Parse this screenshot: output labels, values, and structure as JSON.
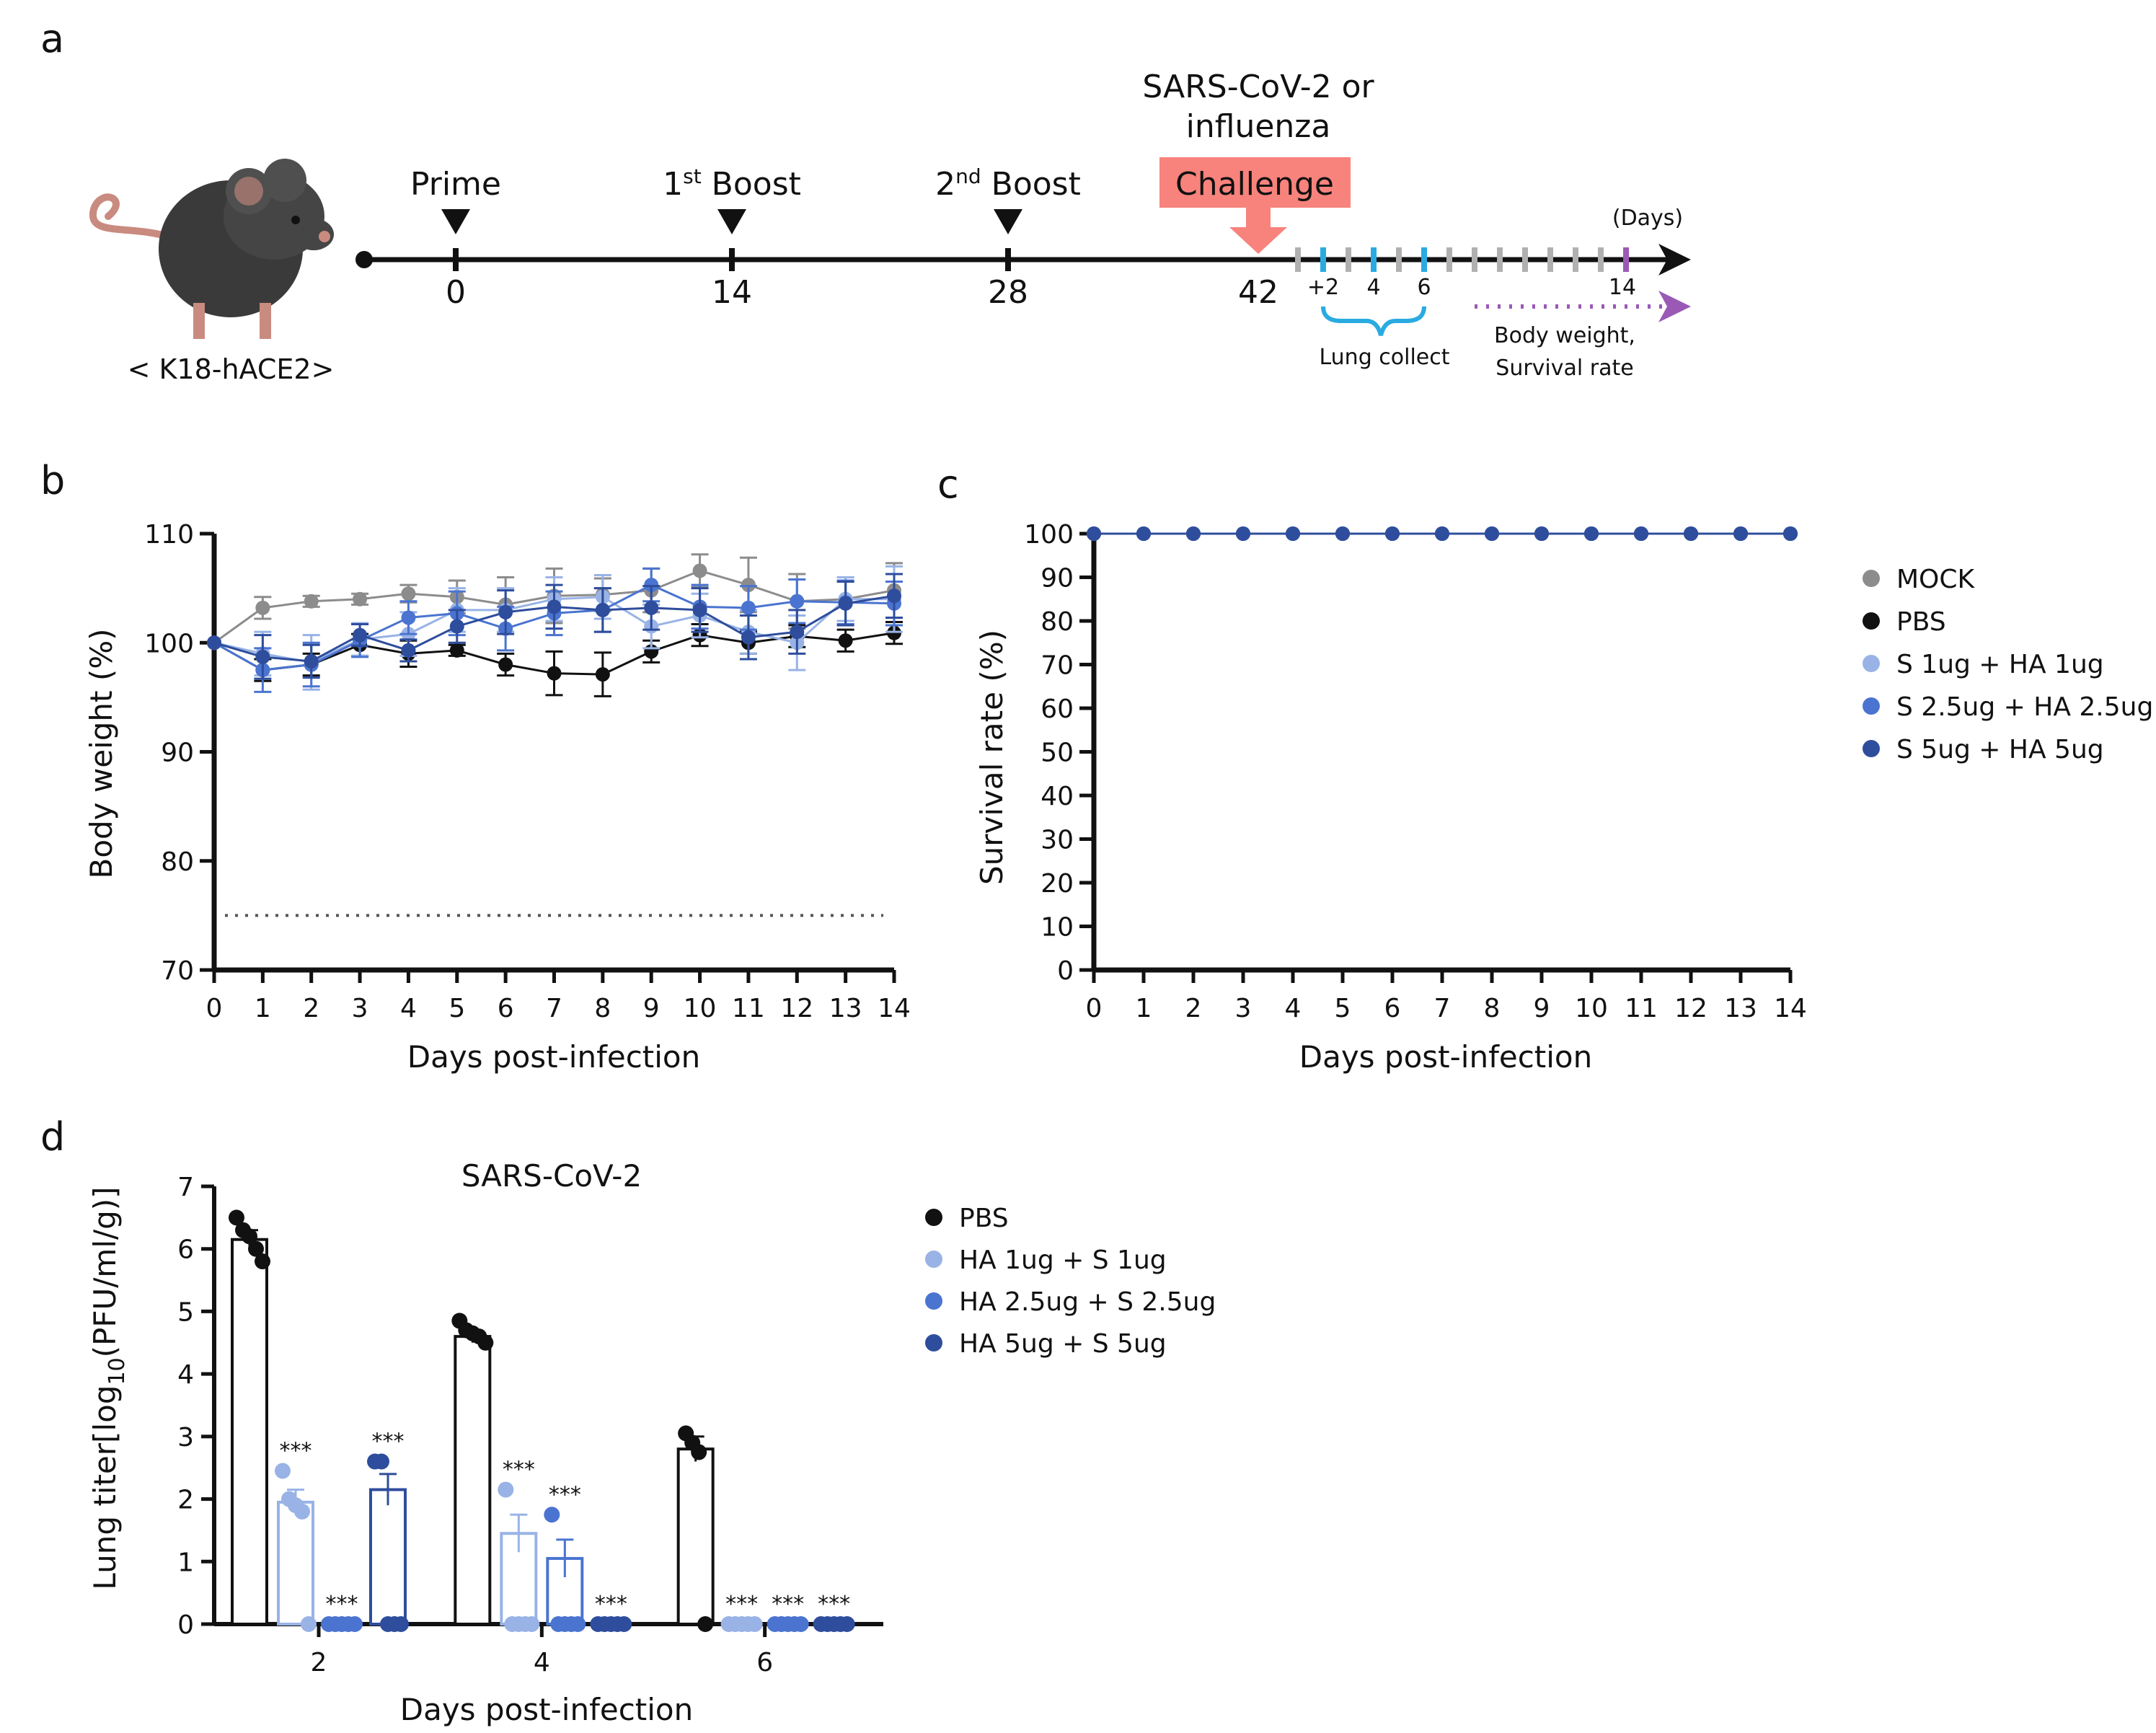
{
  "panels": {
    "a": "a",
    "b": "b",
    "c": "c",
    "d": "d"
  },
  "schematic": {
    "mouse_label": "< K18-hACE2>",
    "prime": "Prime",
    "boost1": {
      "num": "1",
      "sup": "st",
      "word": " Boost"
    },
    "boost2": {
      "num": "2",
      "sup": "nd",
      "word": " Boost"
    },
    "challenge_title_1": "SARS-CoV-2 or",
    "challenge_title_2": "influenza",
    "challenge": "Challenge",
    "days_unit": "(Days)",
    "timepoints": [
      "0",
      "14",
      "28",
      "42"
    ],
    "post_ticks": [
      "+2",
      "4",
      "6",
      "14"
    ],
    "lung_collect": "Lung collect",
    "body_weight": "Body weight,",
    "survival_rate": "Survival rate",
    "colors": {
      "challenge_bg": "#f7837c",
      "lung": "#29abe2",
      "followup": "#9b59b6"
    }
  },
  "colors": {
    "mock": "#8c8c8c",
    "pbs": "#111111",
    "s1": "#99b3e6",
    "s25": "#4a74d0",
    "s5": "#2e4d9c"
  },
  "chart_data": [
    {
      "id": "b",
      "type": "line",
      "title": "",
      "xlabel": "Days post-infection",
      "ylabel": "Body weight (%)",
      "x": [
        0,
        1,
        2,
        3,
        4,
        5,
        6,
        7,
        8,
        9,
        10,
        11,
        12,
        13,
        14
      ],
      "xlim": [
        0,
        14
      ],
      "ylim": [
        70,
        110
      ],
      "yticks": [
        70,
        80,
        90,
        100,
        110
      ],
      "reference_line": 75,
      "series": [
        {
          "name": "MOCK",
          "color_key": "mock",
          "values": [
            100,
            103.2,
            103.8,
            104,
            104.5,
            104.2,
            103.5,
            104.3,
            104.4,
            104.8,
            106.6,
            105.3,
            103.8,
            104,
            104.8
          ],
          "errors": [
            0,
            1,
            0.5,
            0.5,
            0.8,
            1.5,
            2.5,
            2.5,
            1.5,
            2,
            1.5,
            2.5,
            2.5,
            2,
            2.5
          ]
        },
        {
          "name": "PBS",
          "color_key": "pbs",
          "values": [
            100,
            97.5,
            98,
            99.8,
            99,
            99.3,
            98,
            97.2,
            97.1,
            99.2,
            100.7,
            100,
            100.6,
            100.2,
            100.9
          ],
          "errors": [
            0,
            1,
            1,
            1,
            1.2,
            0.5,
            1,
            2,
            2,
            1,
            1,
            1,
            1,
            1,
            1
          ]
        },
        {
          "name": "S 1ug + HA 1ug",
          "color_key": "s1",
          "values": [
            100,
            99,
            98.2,
            100.3,
            100.8,
            103,
            103,
            104,
            104.2,
            101.5,
            102.5,
            101,
            100,
            104,
            104
          ],
          "errors": [
            0,
            2,
            2.5,
            1.5,
            2,
            2,
            2,
            2,
            2,
            2,
            2,
            2,
            2.5,
            2,
            3
          ]
        },
        {
          "name": "S 2.5ug + HA 2.5ug",
          "color_key": "s25",
          "values": [
            100,
            97.5,
            98,
            100.2,
            102.3,
            102.7,
            101.3,
            102.7,
            103,
            105.3,
            103.3,
            103.2,
            103.8,
            103.7,
            103.6
          ],
          "errors": [
            0,
            2,
            2,
            1.5,
            1.5,
            2,
            2,
            2,
            2,
            1.5,
            2,
            2,
            2,
            2,
            2
          ]
        },
        {
          "name": "S 5ug + HA 5ug",
          "color_key": "s5",
          "values": [
            100,
            98.7,
            98.3,
            100.7,
            99.3,
            101.5,
            102.8,
            103.3,
            103,
            103.2,
            103,
            100.5,
            101,
            103.6,
            104.3
          ],
          "errors": [
            0,
            2,
            1.5,
            1,
            1,
            1.5,
            2,
            2,
            2,
            2,
            2,
            2,
            2,
            2,
            2
          ]
        }
      ]
    },
    {
      "id": "c",
      "type": "line",
      "title": "",
      "xlabel": "Days post-infection",
      "ylabel": "Survival rate (%)",
      "x": [
        0,
        1,
        2,
        3,
        4,
        5,
        6,
        7,
        8,
        9,
        10,
        11,
        12,
        13,
        14
      ],
      "xlim": [
        0,
        14
      ],
      "ylim": [
        0,
        100
      ],
      "yticks": [
        0,
        10,
        20,
        30,
        40,
        50,
        60,
        70,
        80,
        90,
        100
      ],
      "legend_position": "right",
      "series": [
        {
          "name": "MOCK",
          "color_key": "mock",
          "values": [
            100,
            100,
            100,
            100,
            100,
            100,
            100,
            100,
            100,
            100,
            100,
            100,
            100,
            100,
            100
          ]
        },
        {
          "name": "PBS",
          "color_key": "pbs",
          "values": [
            100,
            100,
            100,
            100,
            100,
            100,
            100,
            100,
            100,
            100,
            100,
            100,
            100,
            100,
            100
          ]
        },
        {
          "name": "S 1ug + HA 1ug",
          "color_key": "s1",
          "values": [
            100,
            100,
            100,
            100,
            100,
            100,
            100,
            100,
            100,
            100,
            100,
            100,
            100,
            100,
            100
          ]
        },
        {
          "name": "S 2.5ug + HA 2.5ug",
          "color_key": "s25",
          "values": [
            100,
            100,
            100,
            100,
            100,
            100,
            100,
            100,
            100,
            100,
            100,
            100,
            100,
            100,
            100
          ]
        },
        {
          "name": "S 5ug + HA 5ug",
          "color_key": "s5",
          "values": [
            100,
            100,
            100,
            100,
            100,
            100,
            100,
            100,
            100,
            100,
            100,
            100,
            100,
            100,
            100
          ]
        }
      ]
    },
    {
      "id": "d",
      "type": "bar",
      "title": "SARS-CoV-2",
      "xlabel": "Days post-infection",
      "ylabel_pre": "Lung titer[log",
      "ylabel_sub": "10",
      "ylabel_post": "(PFU/ml/g)]",
      "categories": [
        "2",
        "4",
        "6"
      ],
      "ylim": [
        0,
        7
      ],
      "yticks": [
        0,
        1,
        2,
        3,
        4,
        5,
        6,
        7
      ],
      "legend_position": "right",
      "series": [
        {
          "name": "PBS",
          "color_key": "pbs",
          "values": [
            6.15,
            4.6,
            2.8
          ],
          "errors": [
            0.15,
            0.1,
            0.2
          ],
          "points": [
            [
              6.5,
              6.3,
              6.2,
              6.0,
              5.8
            ],
            [
              4.85,
              4.7,
              4.65,
              4.6,
              4.5
            ],
            [
              3.05,
              2.9,
              2.75,
              0
            ]
          ],
          "stars": [
            "",
            "",
            ""
          ]
        },
        {
          "name": "HA 1ug + S 1ug",
          "color_key": "s1",
          "values": [
            1.95,
            1.45,
            0
          ],
          "errors": [
            0.2,
            0.3,
            0
          ],
          "points": [
            [
              2.45,
              2.0,
              1.9,
              1.8,
              0
            ],
            [
              2.15,
              0,
              0,
              0,
              0
            ],
            [
              0,
              0,
              0,
              0,
              0
            ]
          ],
          "stars": [
            "***",
            "***",
            "***"
          ]
        },
        {
          "name": "HA 2.5ug + S 2.5ug",
          "color_key": "s25",
          "values": [
            0,
            1.05,
            0
          ],
          "errors": [
            0,
            0.3,
            0
          ],
          "points": [
            [
              0,
              0,
              0,
              0,
              0
            ],
            [
              1.75,
              0,
              0,
              0,
              0
            ],
            [
              0,
              0,
              0,
              0,
              0
            ]
          ],
          "stars": [
            "***",
            "***",
            "***"
          ]
        },
        {
          "name": "HA 5ug + S 5ug",
          "color_key": "s5",
          "values": [
            2.15,
            0,
            0
          ],
          "errors": [
            0.25,
            0,
            0
          ],
          "points": [
            [
              2.6,
              2.6,
              0,
              0,
              0
            ],
            [
              0,
              0,
              0,
              0,
              0
            ],
            [
              0,
              0,
              0,
              0,
              0
            ]
          ],
          "stars": [
            "***",
            "***",
            "***"
          ]
        }
      ]
    }
  ]
}
